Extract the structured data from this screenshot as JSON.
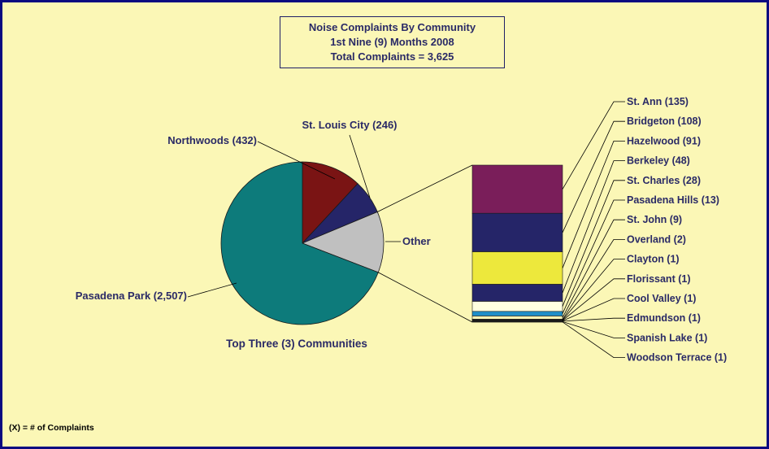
{
  "chart_data": [
    {
      "type": "pie",
      "title": [
        "Noise Complaints By Community",
        "1st Nine (9) Months 2008",
        "Total Complaints = 3,625"
      ],
      "caption": "Top Three (3) Communities",
      "slices": [
        {
          "name": "Northwoods",
          "value": 432,
          "label": "Northwoods (432)",
          "color": "#7a1414"
        },
        {
          "name": "St. Louis City",
          "value": 246,
          "label": "St. Louis City (246)",
          "color": "#252568"
        },
        {
          "name": "Other",
          "value": 440,
          "label": "Other",
          "color": "#c0c0c0"
        },
        {
          "name": "Pasadena Park",
          "value": 2507,
          "label": "Pasadena Park (2,507)",
          "color": "#0d7b7b"
        }
      ]
    },
    {
      "type": "bar",
      "stacked": true,
      "breakout_of": "Other",
      "segments": [
        {
          "name": "St. Ann",
          "value": 135,
          "label": "St. Ann (135)",
          "color": "#7a1e5a"
        },
        {
          "name": "Bridgeton",
          "value": 108,
          "label": "Bridgeton (108)",
          "color": "#252568"
        },
        {
          "name": "Hazelwood",
          "value": 91,
          "label": "Hazelwood (91)",
          "color": "#ede83c"
        },
        {
          "name": "Berkeley",
          "value": 48,
          "label": "Berkeley (48)",
          "color": "#252568"
        },
        {
          "name": "St. Charles",
          "value": 28,
          "label": "St. Charles (28)",
          "color": "#ffffe0"
        },
        {
          "name": "Pasadena Hills",
          "value": 13,
          "label": "Pasadena Hills (13)",
          "color": "#1e8ec8"
        },
        {
          "name": "St. John",
          "value": 9,
          "label": "St. John (9)",
          "color": "#fbf7b6"
        },
        {
          "name": "Overland",
          "value": 2,
          "label": "Overland (2)",
          "color": "#000000"
        },
        {
          "name": "Clayton",
          "value": 1,
          "label": "Clayton (1)",
          "color": "#000000"
        },
        {
          "name": "Florissant",
          "value": 1,
          "label": "Florissant (1)",
          "color": "#000000"
        },
        {
          "name": "Cool Valley",
          "value": 1,
          "label": "Cool Valley (1)",
          "color": "#000000"
        },
        {
          "name": "Edmundson",
          "value": 1,
          "label": "Edmundson (1)",
          "color": "#000000"
        },
        {
          "name": "Spanish Lake",
          "value": 1,
          "label": "Spanish Lake (1)",
          "color": "#000000"
        },
        {
          "name": "Woodson Terrace",
          "value": 1,
          "label": "Woodson Terrace (1)",
          "color": "#000000"
        }
      ]
    }
  ],
  "footnote": "(X) = # of Complaints",
  "colors": {
    "background": "#fbf7b6",
    "border": "#0a0a80",
    "text": "#2a2a66"
  }
}
